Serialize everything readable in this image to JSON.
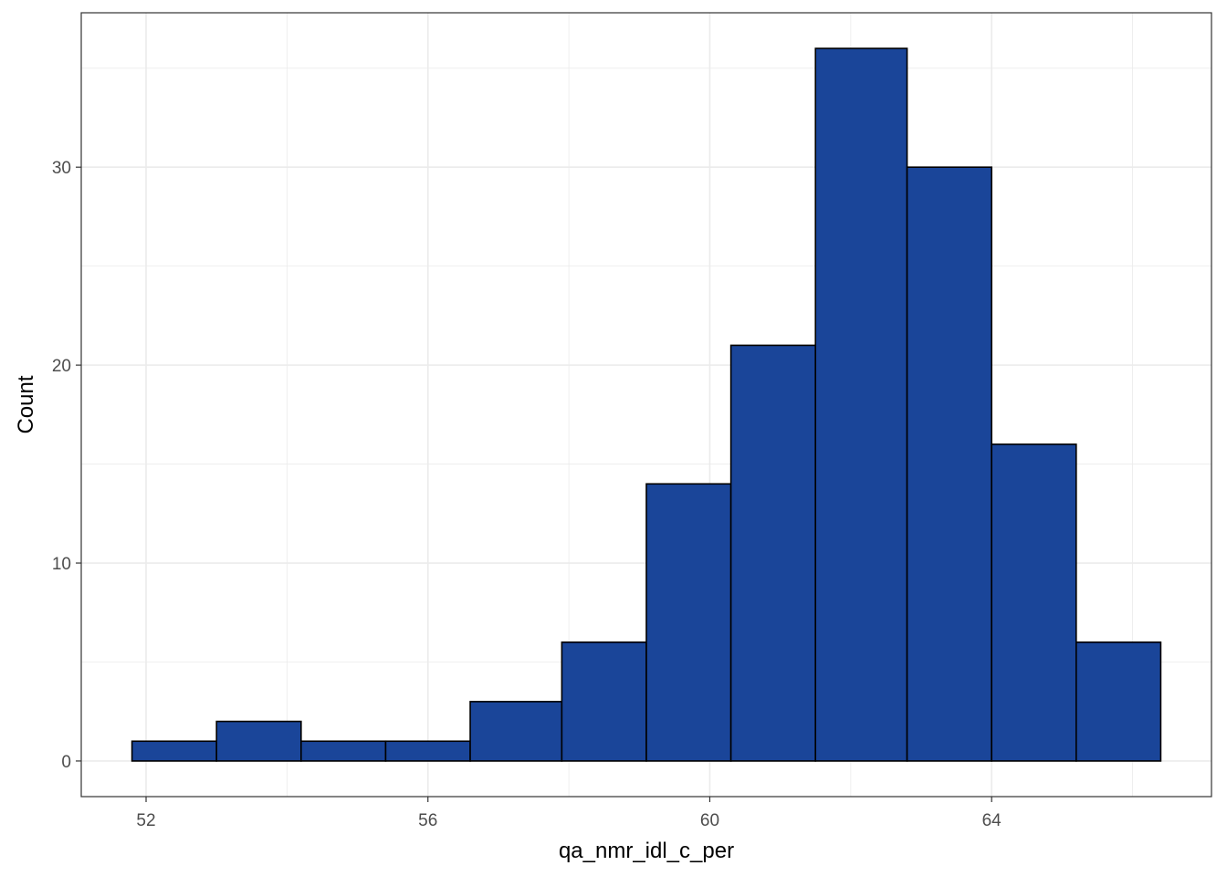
{
  "chart_data": {
    "type": "bar",
    "subtype": "histogram",
    "xlabel": "qa_nmr_idl_c_per",
    "ylabel": "Count",
    "x_bins": [
      {
        "start": 51.8,
        "end": 53.0,
        "count": 1
      },
      {
        "start": 53.0,
        "end": 54.2,
        "count": 2
      },
      {
        "start": 54.2,
        "end": 55.4,
        "count": 1
      },
      {
        "start": 55.4,
        "end": 56.6,
        "count": 1
      },
      {
        "start": 56.6,
        "end": 57.9,
        "count": 3
      },
      {
        "start": 57.9,
        "end": 59.1,
        "count": 6
      },
      {
        "start": 59.1,
        "end": 60.3,
        "count": 14
      },
      {
        "start": 60.3,
        "end": 61.5,
        "count": 21
      },
      {
        "start": 61.5,
        "end": 62.8,
        "count": 36
      },
      {
        "start": 62.8,
        "end": 64.0,
        "count": 30
      },
      {
        "start": 64.0,
        "end": 65.2,
        "count": 16
      },
      {
        "start": 65.2,
        "end": 66.4,
        "count": 6
      }
    ],
    "x_ticks": [
      "52",
      "56",
      "60",
      "64"
    ],
    "y_ticks": [
      "0",
      "10",
      "20",
      "30"
    ],
    "xlim": [
      51.08,
      67.12
    ],
    "ylim": [
      -1.8,
      37.8
    ],
    "grid": true,
    "fill_color": "#1a4599",
    "edge_color": "#000000",
    "panel_border_color": "#333333",
    "grid_color": "#ebebeb"
  }
}
